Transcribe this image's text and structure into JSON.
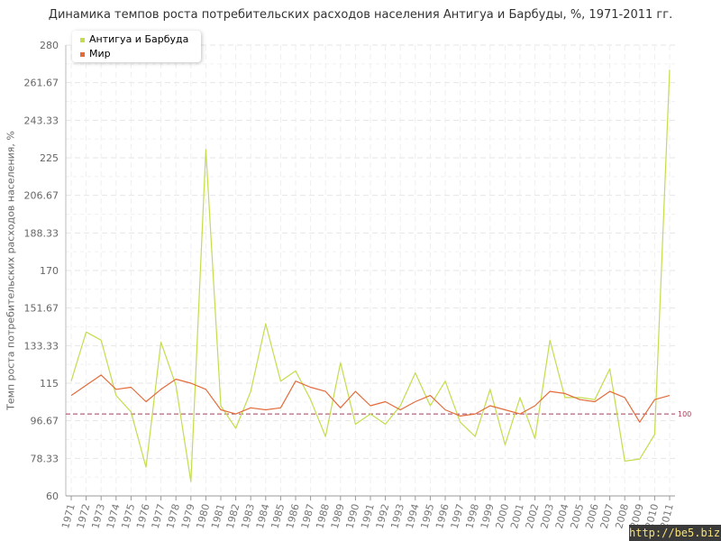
{
  "chart_data": {
    "type": "line",
    "title": "Динамика темпов роста потребительских расходов населения Антигуа и Барбуды, %, 1971-2011 гг.",
    "ylabel": "Темп роста потребительских расходов населения, %",
    "xlabel": "",
    "ylim": [
      60,
      280
    ],
    "y_ticks": [
      "60",
      "78.33",
      "96.67",
      "115",
      "133.33",
      "151.67",
      "170",
      "188.33",
      "206.67",
      "225",
      "243.33",
      "261.67",
      "280"
    ],
    "grid": true,
    "legend_position": "top-left",
    "categories": [
      "1971",
      "1972",
      "1973",
      "1974",
      "1975",
      "1976",
      "1977",
      "1978",
      "1979",
      "1980",
      "1981",
      "1982",
      "1983",
      "1984",
      "1985",
      "1986",
      "1987",
      "1988",
      "1989",
      "1990",
      "1991",
      "1992",
      "1993",
      "1994",
      "1995",
      "1996",
      "1997",
      "1998",
      "1999",
      "2000",
      "2001",
      "2002",
      "2003",
      "2004",
      "2005",
      "2006",
      "2007",
      "2008",
      "2009",
      "2010",
      "2011"
    ],
    "series": [
      {
        "name": "Антигуа и Барбуда",
        "color": "#c3dd4e",
        "values": [
          116,
          140,
          136,
          109,
          101,
          74,
          135,
          114,
          67,
          229,
          104,
          93,
          111,
          144,
          116,
          121,
          107,
          89,
          125,
          95,
          100,
          95,
          104,
          120,
          104,
          116,
          96,
          89,
          112,
          85,
          108,
          88,
          136,
          108,
          108,
          107,
          122,
          77,
          78,
          90,
          268
        ]
      },
      {
        "name": "Мир",
        "color": "#e36b3a",
        "values": [
          109,
          114,
          119,
          112,
          113,
          106,
          112,
          117,
          115,
          112,
          102,
          100,
          103,
          102,
          103,
          116,
          113,
          111,
          103,
          111,
          104,
          106,
          102,
          106,
          109,
          102,
          99,
          100,
          104,
          102,
          100,
          104,
          111,
          110,
          107,
          106,
          111,
          108,
          96,
          107,
          109
        ]
      }
    ],
    "reference_line": {
      "value": 100,
      "label": "100",
      "color": "#b03a5a"
    }
  },
  "watermark": "http://be5.biz/"
}
